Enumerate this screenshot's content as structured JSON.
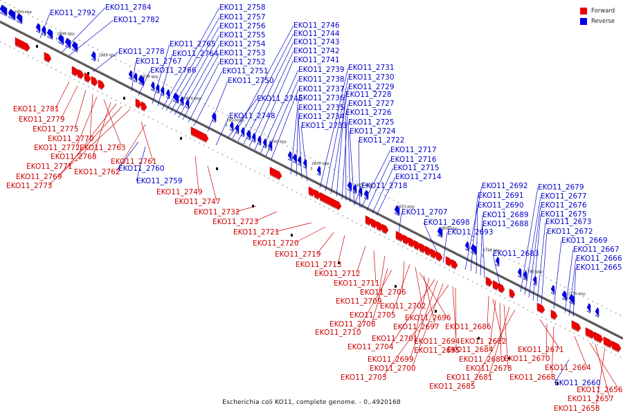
{
  "title": "Escherichia coli KO11, complete genome. - 0..4920168",
  "legend": {
    "forward": {
      "label": "Forward",
      "color": "#ee0000"
    },
    "reverse": {
      "label": "Reverse",
      "color": "#0000ee"
    }
  },
  "axis": {
    "color": "#777777",
    "ticks": [
      "2900 kbp",
      "2890 kbp",
      "2880 kbp",
      "2870 kbp",
      "2860 kbp",
      "2850 kbp",
      "2840 kbp",
      "2830 kbp",
      "2820 kbp",
      "2810 kbp",
      "2800 kbp",
      "2790 kbp",
      "2780 kbp",
      "2770 kbp"
    ]
  },
  "reverse_genes": [
    "EKO11_2792",
    "EKO11_2784",
    "EKO11_2782",
    "EKO11_2778",
    "EKO11_2767",
    "EKO11_2766",
    "EKO11_2765",
    "EKO11_2764",
    "EKO11_2758",
    "EKO11_2757",
    "EKO11_2756",
    "EKO11_2755",
    "EKO11_2754",
    "EKO11_2753",
    "EKO11_2752",
    "EKO11_2751",
    "EKO11_2750",
    "EKO11_2746",
    "EKO11_2744",
    "EKO11_2743",
    "EKO11_2742",
    "EKO11_2741",
    "EKO11_2739",
    "EKO11_2738",
    "EKO11_2737",
    "EKO11_2736",
    "EKO11_2735",
    "EKO11_2734",
    "EKO11_2733",
    "EKO11_2745",
    "EKO11_2748",
    "EKO11_2731",
    "EKO11_2730",
    "EKO11_2729",
    "EKO11_2728",
    "EKO11_2727",
    "EKO11_2726",
    "EKO11_2725",
    "EKO11_2724",
    "EKO11_2722",
    "EKO11_2717",
    "EKO11_2716",
    "EKO11_2715",
    "EKO11_2714",
    "EKO11_2718",
    "EKO11_2707",
    "EKO11_2698",
    "EKO11_2693",
    "EKO11_2692",
    "EKO11_2691",
    "EKO11_2690",
    "EKO11_2689",
    "EKO11_2688",
    "EKO11_2683",
    "EKO11_2679",
    "EKO11_2677",
    "EKO11_2676",
    "EKO11_2675",
    "EKO11_2673",
    "EKO11_2672",
    "EKO11_2669",
    "EKO11_2667",
    "EKO11_2666",
    "EKO11_2665",
    "EKO11_2760",
    "EKO11_2759",
    "EKO11_2660"
  ],
  "forward_genes": [
    "EKO11_2781",
    "EKO11_2779",
    "EKO11_2775",
    "EKO11_2770",
    "EKO11_2772",
    "EKO11_2763",
    "EKO11_2768",
    "EKO11_2771",
    "EKO11_2769",
    "EKO11_2773",
    "EKO11_2761",
    "EKO11_2762",
    "EKO11_2749",
    "EKO11_2747",
    "EKO11_2732",
    "EKO11_2723",
    "EKO11_2721",
    "EKO11_2720",
    "EKO11_2719",
    "EKO11_2713",
    "EKO11_2712",
    "EKO11_2711",
    "EKO11_2709",
    "EKO11_2706",
    "EKO11_2705",
    "EKO11_2702",
    "EKO11_2708",
    "EKO11_2710",
    "EKO11_2696",
    "EKO11_2697",
    "EKO11_2701",
    "EKO11_2704",
    "EKO11_2699",
    "EKO11_2700",
    "EKO11_2703",
    "EKO11_2694",
    "EKO11_2695",
    "EKO11_2686",
    "EKO11_2682",
    "EKO11_2684",
    "EKO11_2680",
    "EKO11_2678",
    "EKO11_2681",
    "EKO11_2685",
    "EKO11_2671",
    "EKO11_2670",
    "EKO11_2668",
    "EKO11_2664",
    "EKO11_2656",
    "EKO11_2657",
    "EKO11_2658"
  ]
}
